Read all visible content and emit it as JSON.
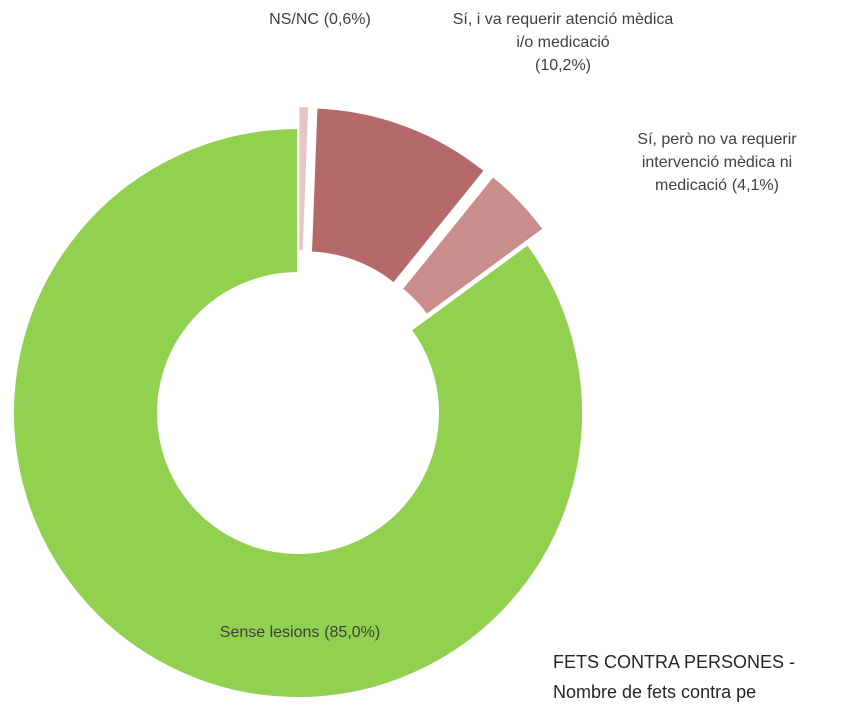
{
  "chart_data": {
    "type": "pie",
    "categories": [
      "NS/NC",
      "Sí, i va requerir atenció mèdica i/o medicació",
      "Sí, però no va requerir intervenció mèdica ni medicació",
      "Sense lesions"
    ],
    "values": [
      0.6,
      10.2,
      4.1,
      85.0
    ],
    "value_labels": [
      "(0,6%)",
      "(10,2%)",
      "(4,1%)",
      "(85,0%)"
    ],
    "colors": [
      "#e8c3c3",
      "#b5696a",
      "#c98d8c",
      "#92d050"
    ],
    "annotations": [
      "FETS CONTRA PERSONES -",
      "Nombre de fets contra pe"
    ]
  }
}
